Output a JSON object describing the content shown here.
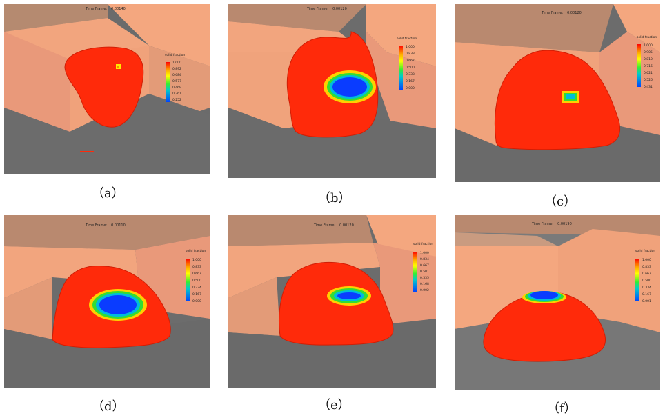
{
  "panels": [
    {
      "id": "a",
      "caption": "（a）",
      "time_label": "Time Frame:",
      "time_value": "0.00140",
      "legend_title": "solid fraction",
      "ticks": [
        "1.000",
        "0.892",
        "0.684",
        "0.577",
        "0.469",
        "0.361",
        "0.252"
      ]
    },
    {
      "id": "b",
      "caption": "（b）",
      "time_label": "Time Frame:",
      "time_value": "0.00120",
      "legend_title": "solid fraction",
      "ticks": [
        "1.000",
        "0.833",
        "0.667",
        "0.500",
        "0.333",
        "0.167",
        "0.000"
      ]
    },
    {
      "id": "c",
      "caption": "（c）",
      "time_label": "Time Frame:",
      "time_value": "0.00120",
      "legend_title": "solid fraction",
      "ticks": [
        "1.000",
        "0.905",
        "0.810",
        "0.716",
        "0.621",
        "0.526",
        "0.431"
      ]
    },
    {
      "id": "d",
      "caption": "（d）",
      "time_label": "Time Frame:",
      "time_value": "0.00110",
      "legend_title": "solid fraction",
      "ticks": [
        "1.000",
        "0.833",
        "0.667",
        "0.500",
        "0.334",
        "0.167",
        "0.000"
      ]
    },
    {
      "id": "e",
      "caption": "（e）",
      "time_label": "Time Frame:",
      "time_value": "0.00120",
      "legend_title": "solid fraction",
      "ticks": [
        "1.000",
        "0.834",
        "0.667",
        "0.501",
        "0.335",
        "0.168",
        "0.002"
      ]
    },
    {
      "id": "f",
      "caption": "（f）",
      "time_label": "Time Frame:",
      "time_value": "0.00190",
      "legend_title": "solid fraction",
      "ticks": [
        "1.000",
        "0.833",
        "0.667",
        "0.500",
        "0.334",
        "0.167",
        "0.001"
      ]
    }
  ],
  "colors": {
    "melt": "#ff2a0a",
    "wall": "#f4a77f",
    "wall_shade": "#d98f6a",
    "floor": "#6c6c6c",
    "solid": "#0a3cff",
    "mushy_ring": "#22dd44",
    "edge": "#ffd000"
  }
}
